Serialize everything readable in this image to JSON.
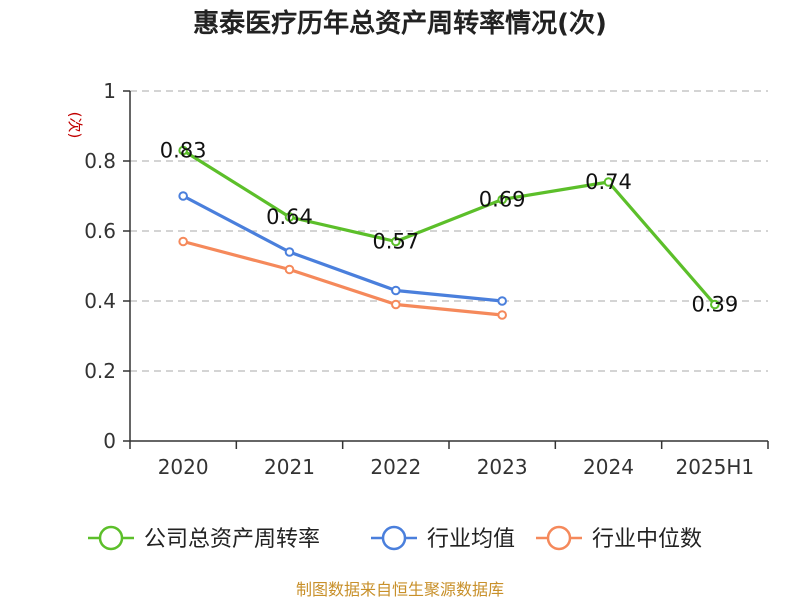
{
  "chart_data": {
    "type": "line",
    "title": "惠泰医疗历年总资产周转率情况(次)",
    "ylabel": "(次)",
    "xlabel": "",
    "categories": [
      "2020",
      "2021",
      "2022",
      "2023",
      "2024",
      "2025H1"
    ],
    "ylim": [
      0,
      1
    ],
    "yticks": [
      0,
      0.2,
      0.4,
      0.6,
      0.8,
      1
    ],
    "ytick_labels": [
      "0",
      "0.2",
      "0.4",
      "0.6",
      "0.8",
      "1"
    ],
    "grid": true,
    "legend_position": "bottom",
    "series": [
      {
        "name": "公司总资产周转率",
        "color": "#5cbf2a",
        "values": [
          0.83,
          0.64,
          0.57,
          0.69,
          0.74,
          0.39
        ],
        "labels": [
          "0.83",
          "0.64",
          "0.57",
          "0.69",
          "0.74",
          "0.39"
        ]
      },
      {
        "name": "行业均值",
        "color": "#4a7fdc",
        "values": [
          0.7,
          0.54,
          0.43,
          0.4,
          null,
          null
        ],
        "labels": []
      },
      {
        "name": "行业中位数",
        "color": "#f5895b",
        "values": [
          0.57,
          0.49,
          0.39,
          0.36,
          null,
          null
        ],
        "labels": []
      }
    ]
  },
  "source_note": "制图数据来自恒生聚源数据库"
}
